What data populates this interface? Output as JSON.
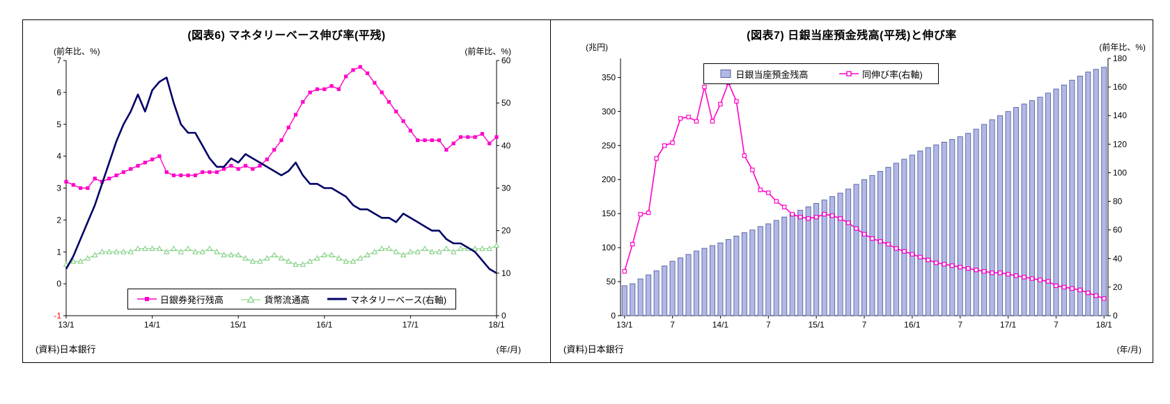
{
  "panels": {
    "left": {
      "title": "(図表6) マネタリーベース伸び率(平残)",
      "y_left_unit": "(前年比、%)",
      "y_right_unit": "(前年比、%)",
      "source": "(資料)日本銀行",
      "x_unit": "(年/月)",
      "legend": {
        "banknotes": "日銀券発行残高",
        "currency": "貨幣流通高",
        "mb": "マネタリーベース(右軸)"
      }
    },
    "right": {
      "title": "(図表7) 日銀当座預金残高(平残)と伸び率",
      "y_left_unit": "(兆円)",
      "y_right_unit": "(前年比、%)",
      "source": "(資料)日本銀行",
      "x_unit": "(年/月)",
      "legend": {
        "balance": "日銀当座預金残高",
        "growth": "同伸び率(右軸)"
      }
    }
  },
  "colors": {
    "magenta": "#ff00c8",
    "green": "#77cc77",
    "navy": "#000066",
    "bar_fill": "#b0b8e6",
    "bar_stroke": "#5a62a0",
    "red": "#ff0000"
  },
  "chart_data": [
    {
      "type": "line",
      "title": "(図表6) マネタリーベース伸び率(平残)",
      "x_tick_labels": [
        "13/1",
        "14/1",
        "15/1",
        "16/1",
        "17/1",
        "18/1"
      ],
      "x_tick_positions": [
        0,
        12,
        24,
        36,
        48,
        60
      ],
      "y_left": {
        "min": -1,
        "max": 7,
        "ticks": [
          7,
          6,
          5,
          4,
          3,
          2,
          1,
          0,
          -1
        ],
        "label": "(前年比、%)"
      },
      "y_right": {
        "min": 0,
        "max": 60,
        "ticks": [
          60,
          50,
          40,
          30,
          20,
          10,
          0
        ],
        "label": "(前年比、%)"
      },
      "legend_position": "bottom-inside",
      "grid": false,
      "series": [
        {
          "name": "日銀券発行残高",
          "axis": "left",
          "marker": "square",
          "color": "magenta",
          "width": 1.4,
          "values": [
            3.2,
            3.1,
            3.0,
            3.0,
            3.3,
            3.2,
            3.3,
            3.4,
            3.5,
            3.6,
            3.7,
            3.8,
            3.9,
            4.0,
            3.5,
            3.4,
            3.4,
            3.4,
            3.4,
            3.5,
            3.5,
            3.5,
            3.6,
            3.7,
            3.6,
            3.7,
            3.6,
            3.7,
            3.9,
            4.2,
            4.5,
            4.9,
            5.3,
            5.7,
            6.0,
            6.1,
            6.1,
            6.2,
            6.1,
            6.5,
            6.7,
            6.8,
            6.6,
            6.3,
            6.0,
            5.7,
            5.4,
            5.1,
            4.8,
            4.5,
            4.5,
            4.5,
            4.5,
            4.2,
            4.4,
            4.6,
            4.6,
            4.6,
            4.7,
            4.4,
            4.6
          ]
        },
        {
          "name": "貨幣流通高",
          "axis": "left",
          "marker": "triangle-open",
          "color": "green",
          "width": 1,
          "values": [
            0.6,
            0.7,
            0.7,
            0.8,
            0.9,
            1.0,
            1.0,
            1.0,
            1.0,
            1.0,
            1.1,
            1.1,
            1.1,
            1.1,
            1.0,
            1.1,
            1.0,
            1.1,
            1.0,
            1.0,
            1.1,
            1.0,
            0.9,
            0.9,
            0.9,
            0.8,
            0.7,
            0.7,
            0.8,
            0.9,
            0.8,
            0.7,
            0.6,
            0.6,
            0.7,
            0.8,
            0.9,
            0.9,
            0.8,
            0.7,
            0.7,
            0.8,
            0.9,
            1.0,
            1.1,
            1.1,
            1.0,
            0.9,
            1.0,
            1.0,
            1.1,
            1.0,
            1.0,
            1.1,
            1.0,
            1.1,
            1.1,
            1.1,
            1.1,
            1.1,
            1.2
          ]
        },
        {
          "name": "マネタリーベース(右軸)",
          "axis": "right",
          "marker": "none",
          "color": "navy",
          "width": 2.6,
          "values": [
            11,
            14,
            18,
            22,
            26,
            31,
            36,
            41,
            45,
            48,
            52,
            48,
            53,
            55,
            56,
            50,
            45,
            43,
            43,
            40,
            37,
            35,
            35,
            37,
            36,
            38,
            37,
            36,
            35,
            34,
            33,
            34,
            36,
            33,
            31,
            31,
            30,
            30,
            29,
            28,
            26,
            25,
            25,
            24,
            23,
            23,
            22,
            24,
            23,
            22,
            21,
            20,
            20,
            18,
            17,
            17,
            16,
            15,
            13,
            11,
            10
          ]
        }
      ]
    },
    {
      "type": "bar",
      "title": "(図表7) 日銀当座預金残高(平残)と伸び率",
      "x_tick_labels": [
        "13/1",
        "7",
        "14/1",
        "7",
        "15/1",
        "7",
        "16/1",
        "7",
        "17/1",
        "7",
        "18/1"
      ],
      "x_tick_positions": [
        0,
        6,
        12,
        18,
        24,
        30,
        36,
        42,
        48,
        54,
        60
      ],
      "y_left": {
        "min": 0,
        "max": 378,
        "ticks": [
          350,
          300,
          250,
          200,
          150,
          100,
          50,
          0
        ],
        "label": "(兆円)"
      },
      "y_right": {
        "min": 0,
        "max": 180,
        "ticks": [
          180,
          160,
          140,
          120,
          100,
          80,
          60,
          40,
          20,
          0
        ],
        "label": "(前年比、%)"
      },
      "legend_position": "top-inside",
      "grid": false,
      "series": [
        {
          "name": "日銀当座預金残高",
          "axis": "left",
          "kind": "bar",
          "values": [
            44,
            47,
            54,
            60,
            66,
            73,
            80,
            85,
            90,
            95,
            99,
            103,
            107,
            112,
            117,
            122,
            126,
            131,
            135,
            140,
            145,
            150,
            155,
            160,
            165,
            170,
            175,
            180,
            186,
            193,
            200,
            206,
            212,
            218,
            224,
            230,
            236,
            242,
            247,
            251,
            255,
            259,
            263,
            268,
            274,
            281,
            288,
            294,
            300,
            306,
            311,
            316,
            321,
            327,
            333,
            339,
            346,
            352,
            358,
            362,
            365
          ]
        },
        {
          "name": "同伸び率(右軸)",
          "axis": "right",
          "kind": "line",
          "marker": "square-open",
          "color": "magenta",
          "width": 1.6,
          "values": [
            31,
            50,
            71,
            72,
            110,
            119,
            121,
            138,
            139,
            136,
            160,
            136,
            148,
            163,
            150,
            112,
            102,
            88,
            86,
            80,
            76,
            71,
            69,
            68,
            69,
            71,
            70,
            68,
            65,
            61,
            57,
            54,
            52,
            50,
            47,
            45,
            43,
            41,
            39,
            37,
            36,
            35,
            34,
            33,
            32,
            31,
            30,
            30,
            29,
            28,
            27,
            26,
            25,
            24,
            21,
            20,
            19,
            18,
            16,
            14,
            12
          ]
        }
      ]
    }
  ]
}
